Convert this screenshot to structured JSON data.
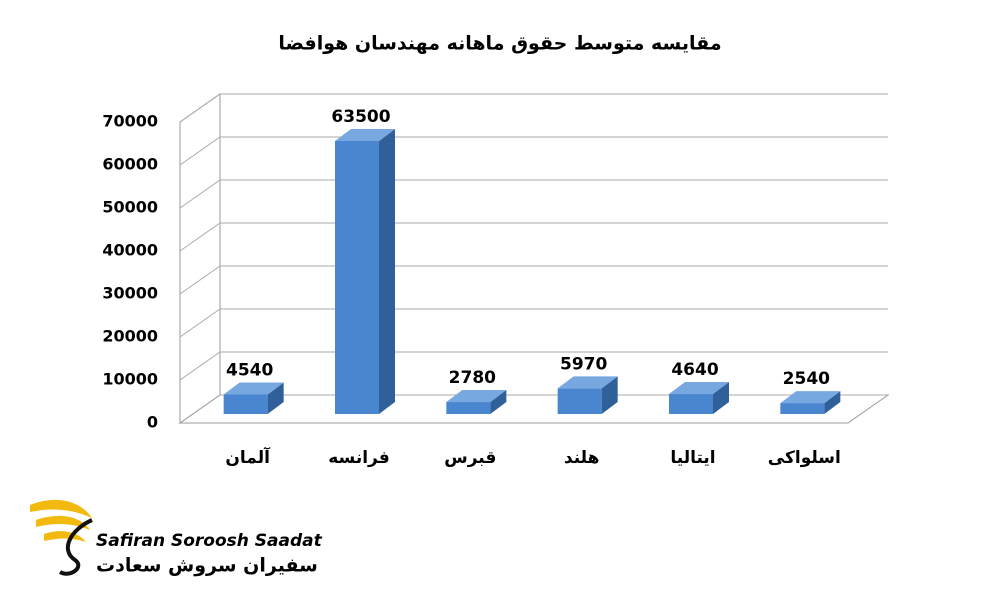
{
  "chart_data": {
    "type": "bar3d",
    "title": "مقایسه متوسط حقوق ماهانه مهندسان هوافضا",
    "categories": [
      "آلمان",
      "فرانسه",
      "قبرس",
      "هلند",
      "ایتالیا",
      "اسلواکی"
    ],
    "values": [
      4540,
      63500,
      2780,
      5970,
      4640,
      2540
    ],
    "color": "#4a86d0",
    "ylim": [
      0,
      70000
    ],
    "yticks": [
      0,
      10000,
      20000,
      30000,
      40000,
      50000,
      60000,
      70000
    ],
    "grid": true
  },
  "logo": {
    "latin": "Safiran Soroosh Saadat",
    "persian": "سفیران سروش سعادت"
  }
}
